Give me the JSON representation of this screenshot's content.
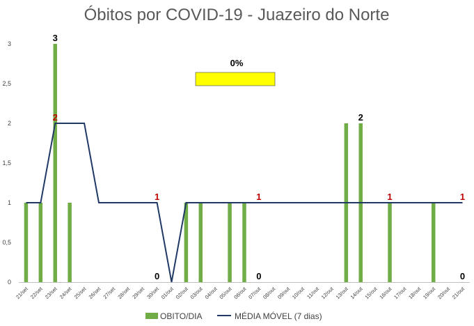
{
  "chart_data": {
    "type": "bar",
    "title": "Óbitos por COVID-19 - Juazeiro do Norte",
    "categories": [
      "21/set",
      "22/set",
      "23/set",
      "24/set",
      "25/set",
      "26/set",
      "27/set",
      "28/set",
      "29/set",
      "30/set",
      "01/out",
      "02/out",
      "03/out",
      "04/out",
      "05/out",
      "06/out",
      "07/out",
      "08/out",
      "09/out",
      "10/out",
      "11/out",
      "12/out",
      "13/out",
      "14/out",
      "15/out",
      "16/out",
      "17/out",
      "18/out",
      "19/out",
      "20/out",
      "21/out"
    ],
    "series": [
      {
        "name": "OBITO/DIA",
        "type": "bar",
        "color": "#70AD47",
        "values": [
          1,
          1,
          3,
          1,
          0,
          0,
          0,
          0,
          0,
          0,
          0,
          1,
          1,
          0,
          1,
          1,
          0,
          0,
          0,
          0,
          0,
          0,
          2,
          2,
          0,
          1,
          0,
          0,
          1,
          0,
          0
        ]
      },
      {
        "name": "MÉDIA MÓVEL (7 dias)",
        "type": "line",
        "color": "#1F3864",
        "values": [
          1,
          1,
          2,
          2,
          2,
          1,
          1,
          1,
          1,
          1,
          0,
          1,
          1,
          1,
          1,
          1,
          1,
          1,
          1,
          1,
          1,
          1,
          1,
          1,
          1,
          1,
          1,
          1,
          1,
          1,
          1
        ]
      }
    ],
    "yticks": [
      "0",
      "0,5",
      "1",
      "1,5",
      "2",
      "2,5",
      "3"
    ],
    "ylim": [
      0,
      3.3
    ],
    "grid": false,
    "legend": "bottom",
    "annotations": [
      {
        "text": "3",
        "index": 2,
        "value": 3,
        "color": "#000000"
      },
      {
        "text": "2",
        "index": 2,
        "value": 2,
        "color": "#C00000"
      },
      {
        "text": "1",
        "index": 9,
        "value": 1,
        "color": "#C00000"
      },
      {
        "text": "0",
        "index": 9,
        "value": 0,
        "color": "#000000"
      },
      {
        "text": "1",
        "index": 16,
        "value": 1,
        "color": "#C00000"
      },
      {
        "text": "0",
        "index": 16,
        "value": 0,
        "color": "#000000"
      },
      {
        "text": "2",
        "index": 23,
        "value": 2,
        "color": "#000000"
      },
      {
        "text": "1",
        "index": 25,
        "value": 1,
        "color": "#C00000"
      },
      {
        "text": "1",
        "index": 30,
        "value": 1,
        "color": "#C00000"
      },
      {
        "text": "0",
        "index": 30,
        "value": 0,
        "color": "#000000"
      }
    ],
    "percent_box": {
      "label": "0%",
      "color": "#FFFF00"
    }
  }
}
